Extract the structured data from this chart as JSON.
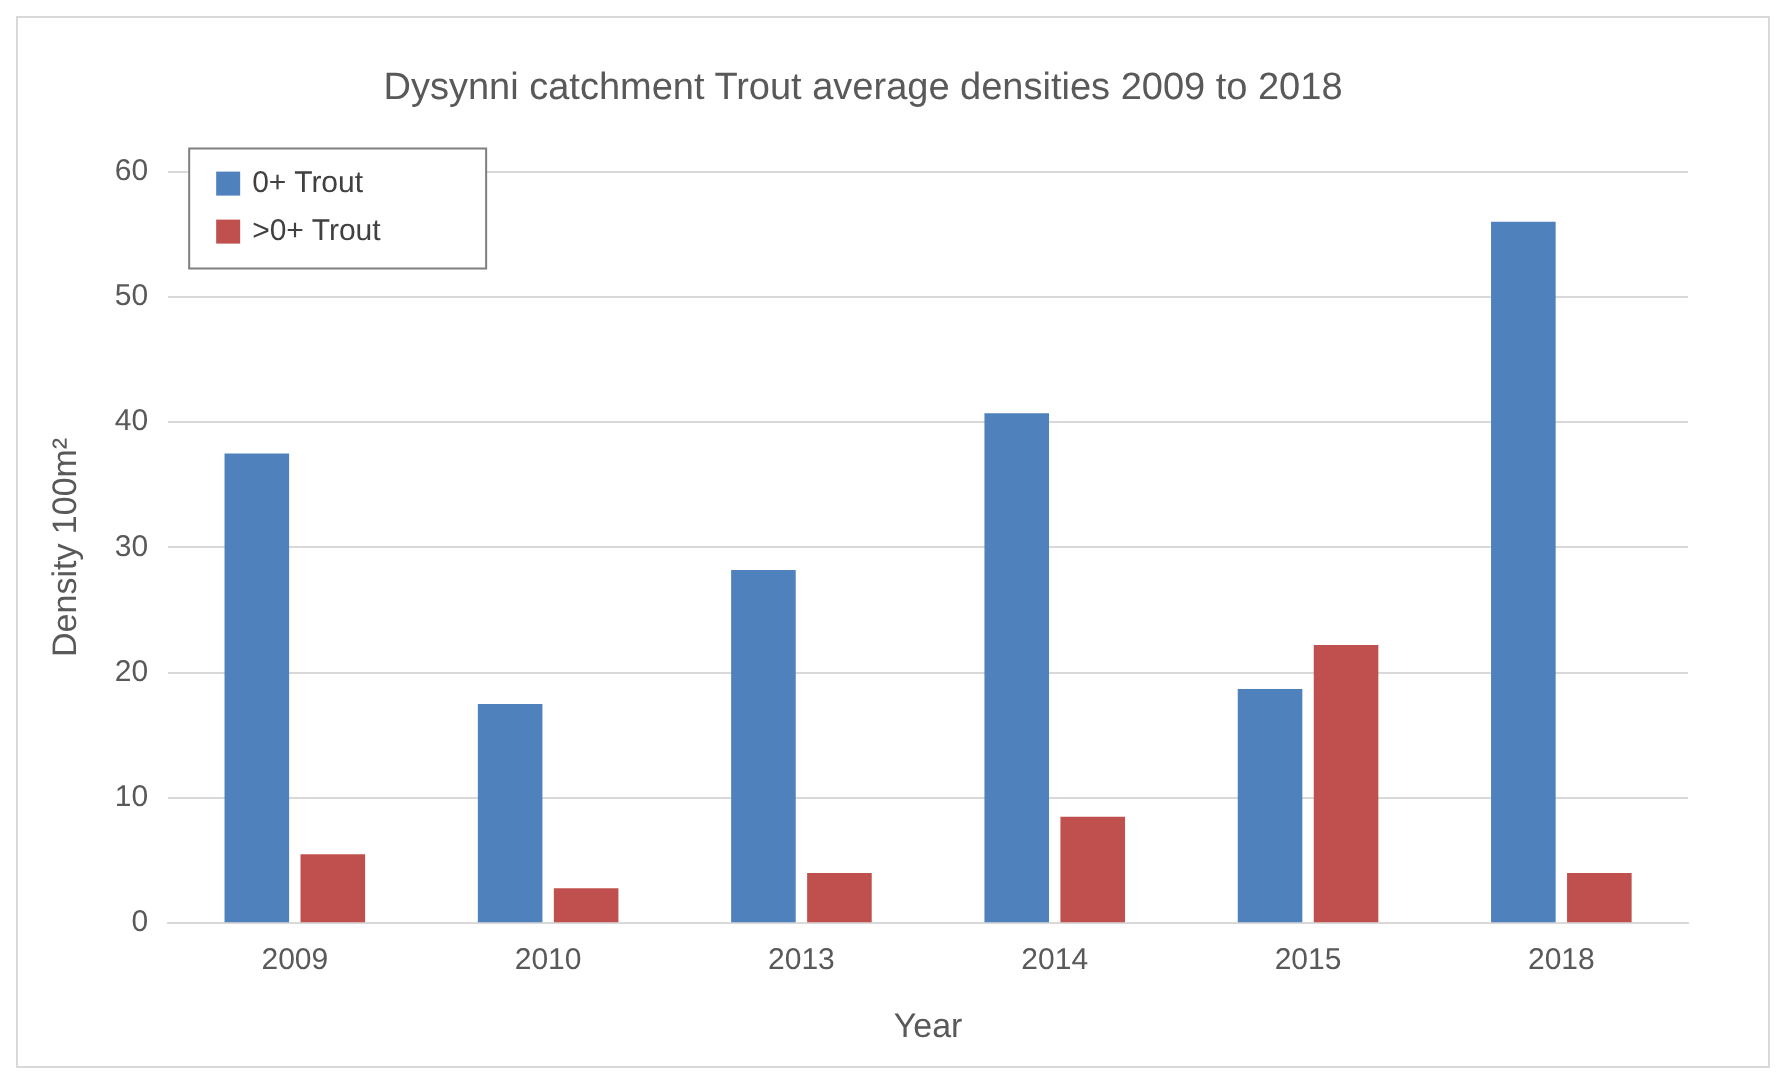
{
  "chart_data": {
    "type": "bar",
    "title": "Dysynni catchment Trout average densities 2009 to 2018",
    "xlabel": "Year",
    "ylabel": "Density 100m²",
    "categories": [
      "2009",
      "2010",
      "2013",
      "2014",
      "2015",
      "2018"
    ],
    "series": [
      {
        "name": "0+ Trout",
        "color": "#4f81bd",
        "values": [
          37.5,
          17.5,
          28.2,
          40.7,
          18.7,
          56
        ]
      },
      {
        "name": ">0+ Trout",
        "color": "#c0504d",
        "values": [
          5.5,
          2.8,
          4,
          8.5,
          22.2,
          4
        ]
      }
    ],
    "ylim": [
      0,
      60
    ],
    "yticks": [
      0,
      10,
      20,
      30,
      40,
      50,
      60
    ],
    "grid": "y",
    "legend": "top left"
  }
}
